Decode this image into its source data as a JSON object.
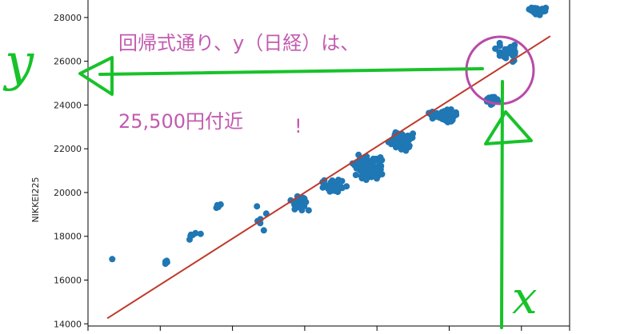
{
  "chart_data": {
    "type": "scatter",
    "title": "",
    "xlabel": "",
    "ylabel": "NIKKEI225",
    "xlim": [
      0,
      1
    ],
    "ylim": [
      13900,
      28800
    ],
    "yticks": [
      14000,
      16000,
      18000,
      20000,
      22000,
      24000,
      26000,
      28000
    ],
    "ytick_labels": [
      "14000",
      "16000",
      "18000",
      "20000",
      "22000",
      "24000",
      "26000",
      "28000"
    ],
    "xticks": [
      0,
      0.15,
      0.3,
      0.45,
      0.6,
      0.75,
      0.9,
      1.0
    ],
    "grid": false,
    "point_color": "#1f77b4",
    "line_color": "#c0392b",
    "regression_line": {
      "x": [
        0.04,
        0.96
      ],
      "y": [
        14250,
        27150
      ]
    },
    "clusters": [
      {
        "x_center": 0.05,
        "x_spread": 0.005,
        "y_center": 16900,
        "y_spread": 100,
        "count": 1
      },
      {
        "x_center": 0.16,
        "x_spread": 0.02,
        "y_center": 16800,
        "y_spread": 300,
        "count": 4
      },
      {
        "x_center": 0.22,
        "x_spread": 0.03,
        "y_center": 18100,
        "y_spread": 400,
        "count": 6
      },
      {
        "x_center": 0.27,
        "x_spread": 0.03,
        "y_center": 19300,
        "y_spread": 300,
        "count": 6
      },
      {
        "x_center": 0.36,
        "x_spread": 0.03,
        "y_center": 18700,
        "y_spread": 900,
        "count": 6
      },
      {
        "x_center": 0.44,
        "x_spread": 0.03,
        "y_center": 19500,
        "y_spread": 450,
        "count": 30
      },
      {
        "x_center": 0.51,
        "x_spread": 0.03,
        "y_center": 20300,
        "y_spread": 400,
        "count": 40
      },
      {
        "x_center": 0.58,
        "x_spread": 0.04,
        "y_center": 21200,
        "y_spread": 650,
        "count": 110
      },
      {
        "x_center": 0.65,
        "x_spread": 0.03,
        "y_center": 22400,
        "y_spread": 600,
        "count": 70
      },
      {
        "x_center": 0.74,
        "x_spread": 0.04,
        "y_center": 23500,
        "y_spread": 400,
        "count": 60
      },
      {
        "x_center": 0.84,
        "x_spread": 0.02,
        "y_center": 24200,
        "y_spread": 300,
        "count": 18
      },
      {
        "x_center": 0.87,
        "x_spread": 0.03,
        "y_center": 26400,
        "y_spread": 500,
        "count": 35
      },
      {
        "x_center": 0.93,
        "x_spread": 0.03,
        "y_center": 28300,
        "y_spread": 300,
        "count": 25
      }
    ],
    "annotations": {
      "line1": "回帰式通り、y（日経）は、",
      "line2": "25,500円付近",
      "exclamation": "!",
      "hand_y": "y",
      "hand_x": "x",
      "ink_color": "#18c22a",
      "text_color": "#c25bb0"
    }
  }
}
